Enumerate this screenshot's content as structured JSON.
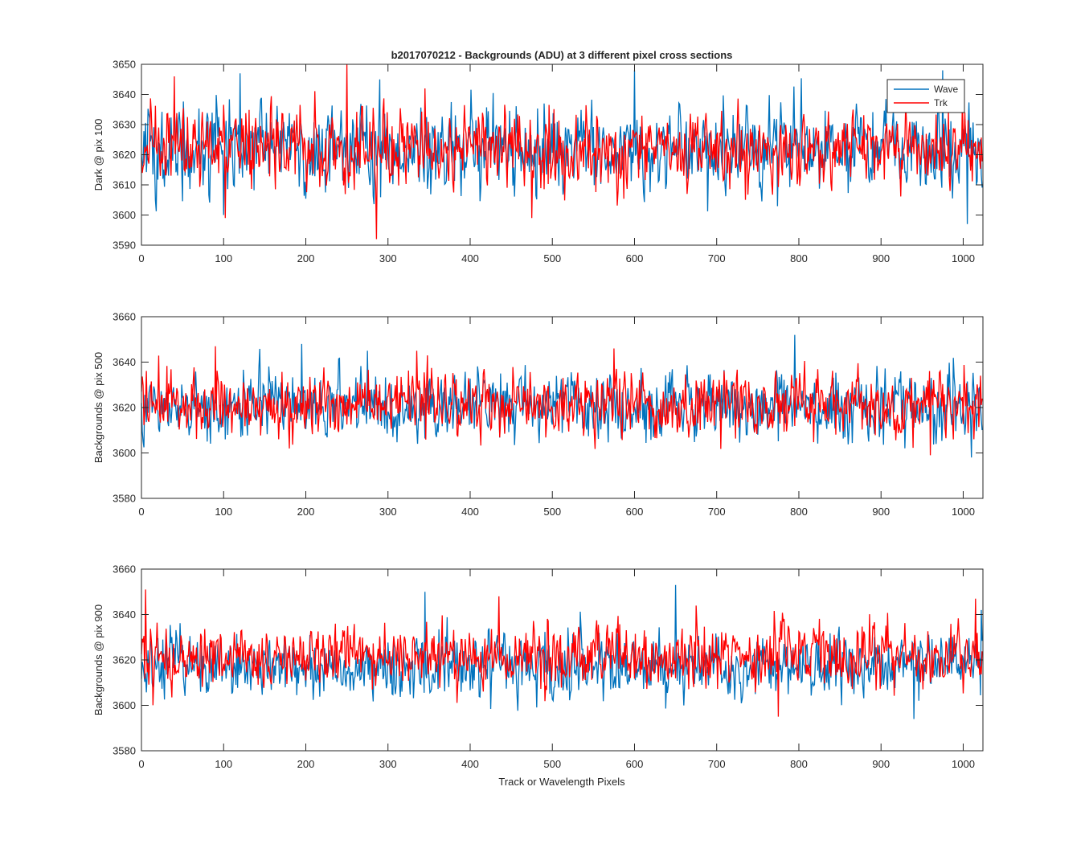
{
  "figure": {
    "title": "b2017070212 - Backgrounds (ADU) at 3 different pixel cross sections",
    "xlabel": "Track or Wavelength Pixels"
  },
  "legend": {
    "placement": "top-right of first subplot",
    "entries": [
      {
        "name": "Wave",
        "color": "#0072BD"
      },
      {
        "name": "Trk",
        "color": "#FF0000"
      }
    ]
  },
  "chart_data": [
    {
      "type": "line",
      "ylabel": "Dark @ pix 100",
      "xlim": [
        0,
        1024
      ],
      "ylim": [
        3590,
        3650
      ],
      "xticks": [
        0,
        100,
        200,
        300,
        400,
        500,
        600,
        700,
        800,
        900,
        1000
      ],
      "yticks": [
        3590,
        3600,
        3610,
        3620,
        3630,
        3640,
        3650
      ],
      "n_points": 1024,
      "series": [
        {
          "name": "Wave",
          "color": "#0072BD",
          "mean": 3622,
          "std": 7,
          "peaks": [
            [
              100,
              3600
            ],
            [
              120,
              3647
            ],
            [
              290,
              3645
            ],
            [
              600,
              3648
            ],
            [
              975,
              3648
            ],
            [
              1005,
              3597
            ]
          ]
        },
        {
          "name": "Trk",
          "color": "#FF0000",
          "mean": 3622,
          "std": 6,
          "peaks": [
            [
              40,
              3646
            ],
            [
              102,
              3599
            ],
            [
              250,
              3650
            ],
            [
              286,
              3592
            ],
            [
              475,
              3599
            ],
            [
              345,
              3642
            ]
          ]
        }
      ]
    },
    {
      "type": "line",
      "ylabel": "Backgrounds @ pix 500",
      "xlim": [
        0,
        1024
      ],
      "ylim": [
        3580,
        3660
      ],
      "xticks": [
        0,
        100,
        200,
        300,
        400,
        500,
        600,
        700,
        800,
        900,
        1000
      ],
      "yticks": [
        3580,
        3600,
        3620,
        3640,
        3660
      ],
      "n_points": 1024,
      "series": [
        {
          "name": "Wave",
          "color": "#0072BD",
          "mean": 3621,
          "std": 7.5,
          "peaks": [
            [
              195,
              3648
            ],
            [
              275,
              3645
            ],
            [
              795,
              3652
            ],
            [
              1010,
              3598
            ]
          ]
        },
        {
          "name": "Trk",
          "color": "#FF0000",
          "mean": 3621,
          "std": 7,
          "peaks": [
            [
              90,
              3647
            ],
            [
              335,
              3645
            ],
            [
              575,
              3646
            ],
            [
              960,
              3599
            ]
          ]
        }
      ]
    },
    {
      "type": "line",
      "ylabel": "Backgrounds @ pix 900",
      "xlim": [
        0,
        1024
      ],
      "ylim": [
        3580,
        3660
      ],
      "xticks": [
        0,
        100,
        200,
        300,
        400,
        500,
        600,
        700,
        800,
        900,
        1000
      ],
      "yticks": [
        3580,
        3600,
        3620,
        3640,
        3660
      ],
      "n_points": 1024,
      "series": [
        {
          "name": "Wave",
          "color": "#0072BD",
          "mean": 3617,
          "std": 7,
          "peaks": [
            [
              345,
              3650
            ],
            [
              650,
              3653
            ],
            [
              1022,
              3642
            ],
            [
              940,
              3594
            ]
          ]
        },
        {
          "name": "Trk",
          "color": "#FF0000",
          "mean": 3622,
          "std": 7,
          "peaks": [
            [
              5,
              3651
            ],
            [
              435,
              3648
            ],
            [
              1015,
              3647
            ],
            [
              775,
              3595
            ]
          ]
        }
      ]
    }
  ]
}
